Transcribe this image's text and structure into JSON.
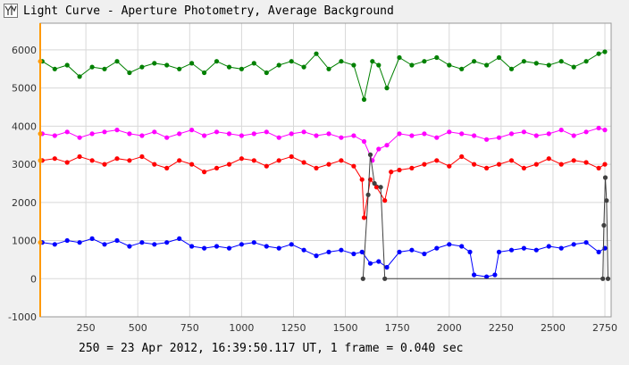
{
  "window": {
    "title": "Light Curve - Aperture Photometry, Average Background"
  },
  "footer": {
    "text": "250 = 23 Apr 2012, 16:39:50.117 UT, 1 frame = 0.040 sec"
  },
  "chart_data": {
    "type": "line",
    "title": "Light Curve - Aperture Photometry, Average Background",
    "xlim": [
      30,
      2780
    ],
    "ylim": [
      -1000,
      6700
    ],
    "xticks": [
      250,
      500,
      750,
      1000,
      1250,
      1500,
      1750,
      2000,
      2250,
      2500,
      2750
    ],
    "yticks": [
      -1000,
      0,
      1000,
      2000,
      3000,
      4000,
      5000,
      6000
    ],
    "grid": true,
    "cursor_x": 30,
    "series": [
      {
        "color": "#008000",
        "x": [
          40,
          100,
          160,
          220,
          280,
          340,
          400,
          460,
          520,
          580,
          640,
          700,
          760,
          820,
          880,
          940,
          1000,
          1060,
          1120,
          1180,
          1240,
          1300,
          1360,
          1420,
          1480,
          1540,
          1590,
          1630,
          1660,
          1700,
          1760,
          1820,
          1880,
          1940,
          2000,
          2060,
          2120,
          2180,
          2240,
          2300,
          2360,
          2420,
          2480,
          2540,
          2600,
          2660,
          2720,
          2750
        ],
        "values": [
          5700,
          5500,
          5600,
          5300,
          5550,
          5500,
          5700,
          5400,
          5550,
          5650,
          5600,
          5500,
          5650,
          5400,
          5700,
          5550,
          5500,
          5650,
          5400,
          5600,
          5700,
          5550,
          5900,
          5500,
          5700,
          5600,
          4700,
          5700,
          5600,
          5000,
          5800,
          5600,
          5700,
          5800,
          5600,
          5500,
          5700,
          5600,
          5800,
          5500,
          5700,
          5650,
          5600,
          5700,
          5550,
          5700,
          5900,
          5950
        ]
      },
      {
        "color": "#ff00ff",
        "x": [
          40,
          100,
          160,
          220,
          280,
          340,
          400,
          460,
          520,
          580,
          640,
          700,
          760,
          820,
          880,
          940,
          1000,
          1060,
          1120,
          1180,
          1240,
          1300,
          1360,
          1420,
          1480,
          1540,
          1590,
          1630,
          1660,
          1700,
          1760,
          1820,
          1880,
          1940,
          2000,
          2060,
          2120,
          2180,
          2240,
          2300,
          2360,
          2420,
          2480,
          2540,
          2600,
          2660,
          2720,
          2750
        ],
        "values": [
          3800,
          3750,
          3850,
          3700,
          3800,
          3850,
          3900,
          3800,
          3750,
          3850,
          3700,
          3800,
          3900,
          3750,
          3850,
          3800,
          3750,
          3800,
          3850,
          3700,
          3800,
          3850,
          3750,
          3800,
          3700,
          3750,
          3600,
          3100,
          3400,
          3500,
          3800,
          3750,
          3800,
          3700,
          3850,
          3800,
          3750,
          3650,
          3700,
          3800,
          3850,
          3750,
          3800,
          3900,
          3750,
          3850,
          3950,
          3900
        ]
      },
      {
        "color": "#ff0000",
        "x": [
          40,
          100,
          160,
          220,
          280,
          340,
          400,
          460,
          520,
          580,
          640,
          700,
          760,
          820,
          880,
          940,
          1000,
          1060,
          1120,
          1180,
          1240,
          1300,
          1360,
          1420,
          1480,
          1540,
          1580,
          1590,
          1620,
          1650,
          1690,
          1720,
          1760,
          1820,
          1880,
          1940,
          2000,
          2060,
          2120,
          2180,
          2240,
          2300,
          2360,
          2420,
          2480,
          2540,
          2600,
          2660,
          2720,
          2750
        ],
        "values": [
          3100,
          3150,
          3050,
          3200,
          3100,
          3000,
          3150,
          3100,
          3200,
          3000,
          2900,
          3100,
          3000,
          2800,
          2900,
          3000,
          3150,
          3100,
          2950,
          3100,
          3200,
          3050,
          2900,
          3000,
          3100,
          2950,
          2600,
          1600,
          2600,
          2400,
          2050,
          2800,
          2850,
          2900,
          3000,
          3100,
          2950,
          3200,
          3000,
          2900,
          3000,
          3100,
          2900,
          3000,
          3150,
          3000,
          3100,
          3050,
          2900,
          3000
        ]
      },
      {
        "color": "#0000ff",
        "x": [
          40,
          100,
          160,
          220,
          280,
          340,
          400,
          460,
          520,
          580,
          640,
          700,
          760,
          820,
          880,
          940,
          1000,
          1060,
          1120,
          1180,
          1240,
          1300,
          1360,
          1420,
          1480,
          1540,
          1580,
          1620,
          1660,
          1700,
          1760,
          1820,
          1880,
          1940,
          2000,
          2060,
          2100,
          2120,
          2180,
          2220,
          2240,
          2300,
          2360,
          2420,
          2480,
          2540,
          2600,
          2660,
          2720,
          2750
        ],
        "values": [
          950,
          900,
          1000,
          950,
          1050,
          900,
          1000,
          850,
          950,
          900,
          950,
          1050,
          850,
          800,
          850,
          800,
          900,
          950,
          850,
          800,
          900,
          750,
          600,
          700,
          750,
          650,
          700,
          400,
          450,
          300,
          700,
          750,
          650,
          800,
          900,
          850,
          700,
          100,
          50,
          100,
          700,
          750,
          800,
          750,
          850,
          800,
          900,
          950,
          700,
          800
        ]
      },
      {
        "color": "#404040",
        "x": [
          1585,
          1610,
          1620,
          1640,
          1670,
          1690,
          2740,
          2745,
          2752,
          2758,
          2765
        ],
        "values": [
          0,
          2200,
          3250,
          2500,
          2400,
          0,
          0,
          1400,
          2650,
          2050,
          0
        ]
      }
    ]
  }
}
